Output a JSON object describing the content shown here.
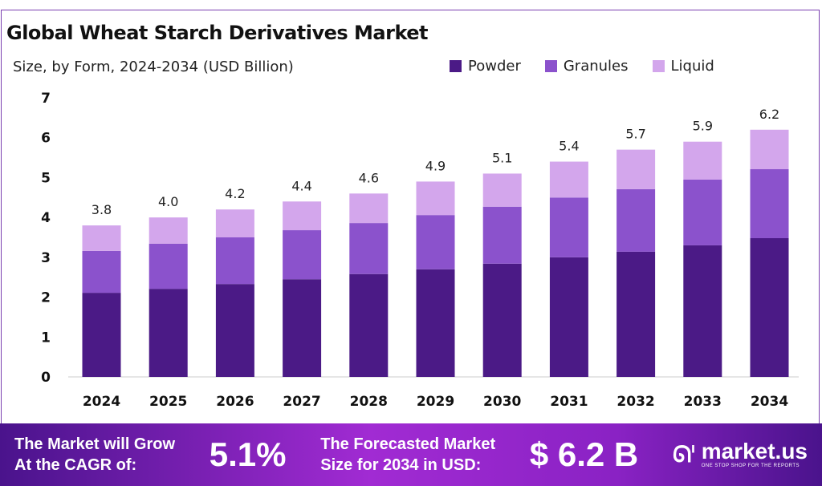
{
  "chart_data": {
    "type": "bar",
    "stacked": true,
    "title": "Global Wheat Starch Derivatives Market",
    "subtitle": "Size, by Form, 2024-2034 (USD Billion)",
    "categories": [
      "2024",
      "2025",
      "2026",
      "2027",
      "2028",
      "2029",
      "2030",
      "2031",
      "2032",
      "2033",
      "2034"
    ],
    "series": [
      {
        "name": "Powder",
        "color": "#4b1a86",
        "values": [
          2.11,
          2.21,
          2.33,
          2.45,
          2.58,
          2.7,
          2.84,
          3.0,
          3.14,
          3.3,
          3.48
        ]
      },
      {
        "name": "Granules",
        "color": "#8b52cc",
        "values": [
          1.05,
          1.13,
          1.17,
          1.23,
          1.28,
          1.36,
          1.43,
          1.5,
          1.57,
          1.65,
          1.73
        ]
      },
      {
        "name": "Liquid",
        "color": "#d3a6ec",
        "values": [
          0.64,
          0.66,
          0.7,
          0.72,
          0.74,
          0.84,
          0.83,
          0.9,
          0.99,
          0.95,
          0.99
        ]
      }
    ],
    "totals": [
      "3.8",
      "4.0",
      "4.2",
      "4.4",
      "4.6",
      "4.9",
      "5.1",
      "5.4",
      "5.7",
      "5.9",
      "6.2"
    ],
    "yticks": [
      "0",
      "1",
      "2",
      "3",
      "4",
      "5",
      "6",
      "7"
    ],
    "ylim": [
      0,
      7
    ],
    "grid": false,
    "legend_position": "top-right"
  },
  "footer": {
    "cagr_label": "The Market will Grow At the CAGR of:",
    "cagr_line1": "The Market will Grow",
    "cagr_line2": "At the CAGR of:",
    "cagr_value": "5.1%",
    "forecast_line1": "The Forecasted Market",
    "forecast_line2": "Size for 2034 in USD:",
    "forecast_value": "$ 6.2 B",
    "logo_text": "market.us",
    "logo_tagline": "ONE STOP SHOP FOR THE REPORTS"
  }
}
